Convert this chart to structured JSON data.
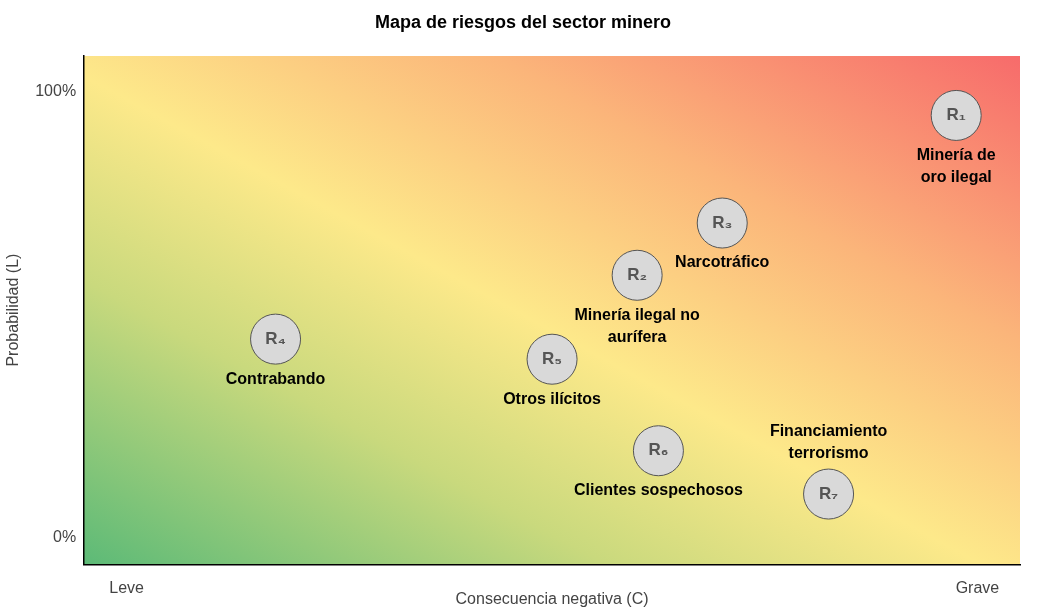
{
  "chart_data": {
    "type": "scatter",
    "title": "Mapa de riesgos del sector minero",
    "xlabel": "Consecuencia negativa (C)",
    "ylabel": "Probabilidad (L)",
    "categories": [
      null,
      null,
      "Leve",
      null,
      null,
      null,
      null,
      null,
      null,
      null,
      null,
      null,
      null,
      null,
      null,
      null,
      null,
      null,
      null,
      null,
      null,
      null,
      null,
      null,
      null,
      null,
      null,
      null,
      null,
      null,
      null,
      null,
      null,
      null,
      null,
      null,
      null,
      null,
      null,
      null,
      null,
      null,
      "Grave",
      null,
      null
    ],
    "series": [
      {
        "color": "#d9d9d9",
        "values": [
          null,
          null,
          null,
          null,
          null,
          null,
          null,
          null,
          null,
          44.5,
          null,
          null,
          null,
          null,
          null,
          null,
          null,
          null,
          null,
          null,
          null,
          null,
          40.0,
          null,
          null,
          null,
          58.8,
          19.5,
          null,
          null,
          70.5,
          null,
          null,
          null,
          null,
          9.8,
          null,
          null,
          null,
          null,
          null,
          94.6,
          null,
          null,
          null
        ]
      }
    ],
    "marker": "circle",
    "ylim": [
      -6,
      108
    ],
    "yticks": [
      {
        "value": 0,
        "label": "0%"
      },
      {
        "value": 100,
        "label": "100%"
      }
    ],
    "annotations": [
      {
        "text": "R₁",
        "y": 94.6
      },
      {
        "text": "R₂",
        "y": 58.8
      },
      {
        "text": "R₃",
        "y": 70.5
      },
      {
        "text": "R₄",
        "y": 44.5
      },
      {
        "text": "R₅",
        "y": 40.0
      },
      {
        "text": "R₆",
        "y": 19.5
      },
      {
        "text": "R₇",
        "y": 9.8
      },
      {
        "text": "Minería de\noro ilegal",
        "y": 94.6
      },
      {
        "text": "Narcotráfico",
        "y": 70.5
      },
      {
        "text": "Minería ilegal no\naurífera",
        "y": 58.8
      },
      {
        "text": "Contrabando",
        "y": 44.5
      },
      {
        "text": "Otros ilícitos",
        "y": 40.0
      },
      {
        "text": "Clientes sospechosos",
        "y": 19.5
      },
      {
        "text": "Financiamiento\nterrorismo",
        "y": 9.8
      }
    ]
  }
}
